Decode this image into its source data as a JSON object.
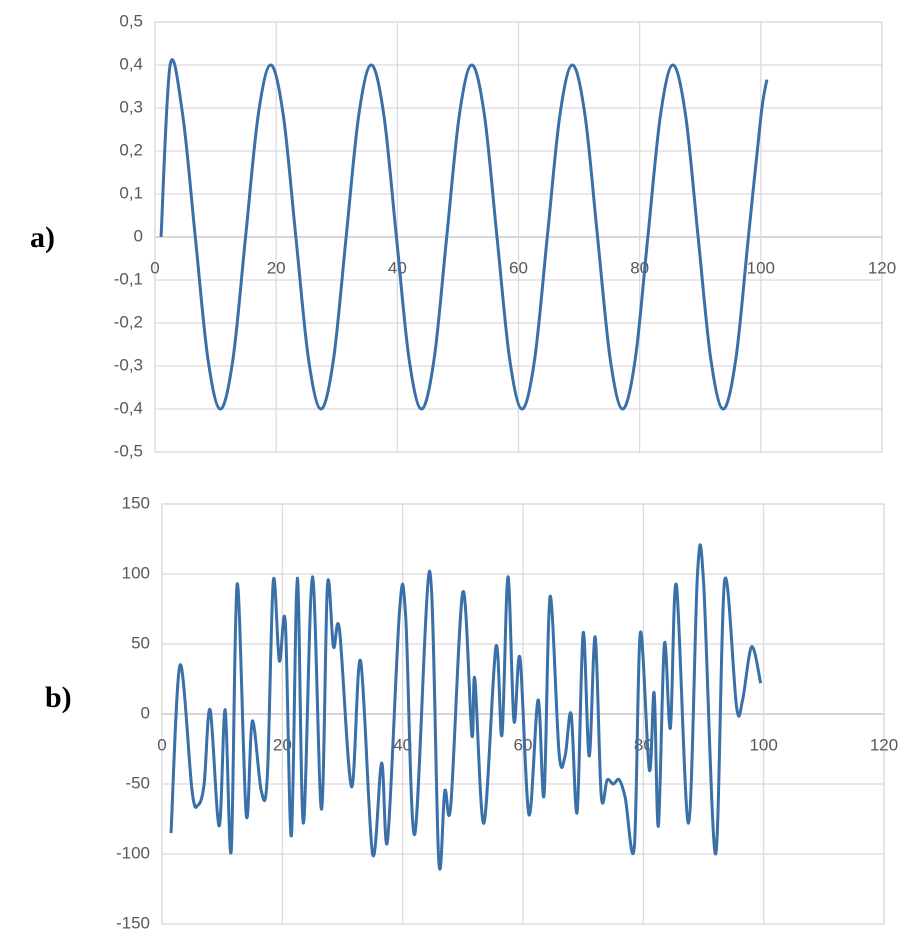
{
  "chart_data": [
    {
      "type": "line",
      "panel_label": "a)",
      "color": "#3a70a8",
      "grid": true,
      "x": [
        1,
        2.5,
        4.58,
        6.65,
        8.73,
        10.8,
        12.88,
        14.95,
        17.03,
        19.1,
        21.18,
        23.25,
        25.33,
        27.4,
        29.48,
        31.55,
        33.63,
        35.7,
        37.78,
        39.85,
        41.93,
        44.0,
        46.08,
        48.15,
        50.23,
        52.3,
        54.38,
        56.45,
        58.53,
        60.6,
        62.68,
        64.75,
        66.83,
        68.9,
        70.98,
        73.05,
        75.13,
        77.2,
        79.28,
        81.35,
        83.43,
        85.5,
        87.58,
        89.65,
        91.73,
        93.8,
        95.88,
        97.95,
        100.03,
        101
      ],
      "values": [
        0,
        0.4,
        0.283,
        0,
        -0.283,
        -0.4,
        -0.283,
        0,
        0.283,
        0.4,
        0.283,
        0,
        -0.283,
        -0.4,
        -0.283,
        0,
        0.283,
        0.4,
        0.283,
        0,
        -0.283,
        -0.4,
        -0.283,
        0,
        0.283,
        0.4,
        0.283,
        0,
        -0.283,
        -0.4,
        -0.283,
        0,
        0.283,
        0.4,
        0.283,
        0,
        -0.283,
        -0.4,
        -0.283,
        0,
        0.283,
        0.4,
        0.283,
        0,
        -0.283,
        -0.4,
        -0.283,
        0,
        0.283,
        0.366
      ],
      "xlim": [
        0,
        120
      ],
      "xticks": [
        0,
        20,
        40,
        60,
        80,
        100,
        120
      ],
      "ylim": [
        -0.5,
        0.5
      ],
      "yticks": [
        {
          "value": -0.5,
          "label": "-0,5"
        },
        {
          "value": -0.4,
          "label": "-0,4"
        },
        {
          "value": -0.3,
          "label": "-0,3"
        },
        {
          "value": -0.2,
          "label": "-0,2"
        },
        {
          "value": -0.1,
          "label": "-0,1"
        },
        0,
        {
          "value": 0.1,
          "label": "0,1"
        },
        {
          "value": 0.2,
          "label": "0,2"
        },
        {
          "value": 0.3,
          "label": "0,3"
        },
        {
          "value": 0.4,
          "label": "0,4"
        },
        {
          "value": 0.5,
          "label": "0,5"
        }
      ]
    },
    {
      "type": "line",
      "panel_label": "b)",
      "color": "#3a70a8",
      "grid": true,
      "x": [
        1.5,
        3,
        5,
        6,
        7,
        8,
        9.5,
        10.5,
        11.5,
        12.5,
        14,
        15,
        16.5,
        17.5,
        18.5,
        19.5,
        20.5,
        21.5,
        22.5,
        23.5,
        25,
        26.5,
        27.5,
        28.5,
        29.5,
        31.5,
        33,
        35,
        36.5,
        37.5,
        39.5,
        40.5,
        42,
        44.5,
        46,
        47,
        48,
        50,
        51.5,
        52,
        53.5,
        55.5,
        56.5,
        57.5,
        58.5,
        59.5,
        61,
        62.5,
        63.5,
        64.5,
        66,
        67,
        68,
        69,
        70,
        71,
        72,
        73,
        74,
        75,
        76,
        77,
        78.5,
        79.5,
        81,
        81.8,
        82.5,
        83.5,
        84.5,
        85.5,
        87.5,
        89,
        90,
        92,
        93.5,
        95.5,
        96.5,
        98,
        99.5
      ],
      "values": [
        -85,
        35,
        -55,
        -65,
        -50,
        3,
        -80,
        3,
        -98,
        93,
        -72,
        -5,
        -55,
        -45,
        95,
        38,
        65,
        -87,
        97,
        -78,
        98,
        -68,
        92,
        48,
        60,
        -52,
        38,
        -100,
        -35,
        -90,
        75,
        70,
        -86,
        102,
        -105,
        -55,
        -65,
        87,
        -15,
        25,
        -78,
        48,
        -15,
        98,
        -5,
        40,
        -72,
        10,
        -58,
        84,
        -28,
        -30,
        0,
        -70,
        58,
        -30,
        55,
        -58,
        -47,
        -50,
        -47,
        -60,
        -95,
        58,
        -40,
        15,
        -80,
        50,
        -10,
        92,
        -78,
        100,
        95,
        -100,
        95,
        5,
        10,
        48,
        22
      ],
      "xlim": [
        0,
        120
      ],
      "xticks": [
        0,
        20,
        40,
        60,
        80,
        100,
        120
      ],
      "ylim": [
        -150,
        150
      ],
      "yticks": [
        -150,
        -100,
        -50,
        0,
        50,
        100,
        150
      ]
    }
  ]
}
